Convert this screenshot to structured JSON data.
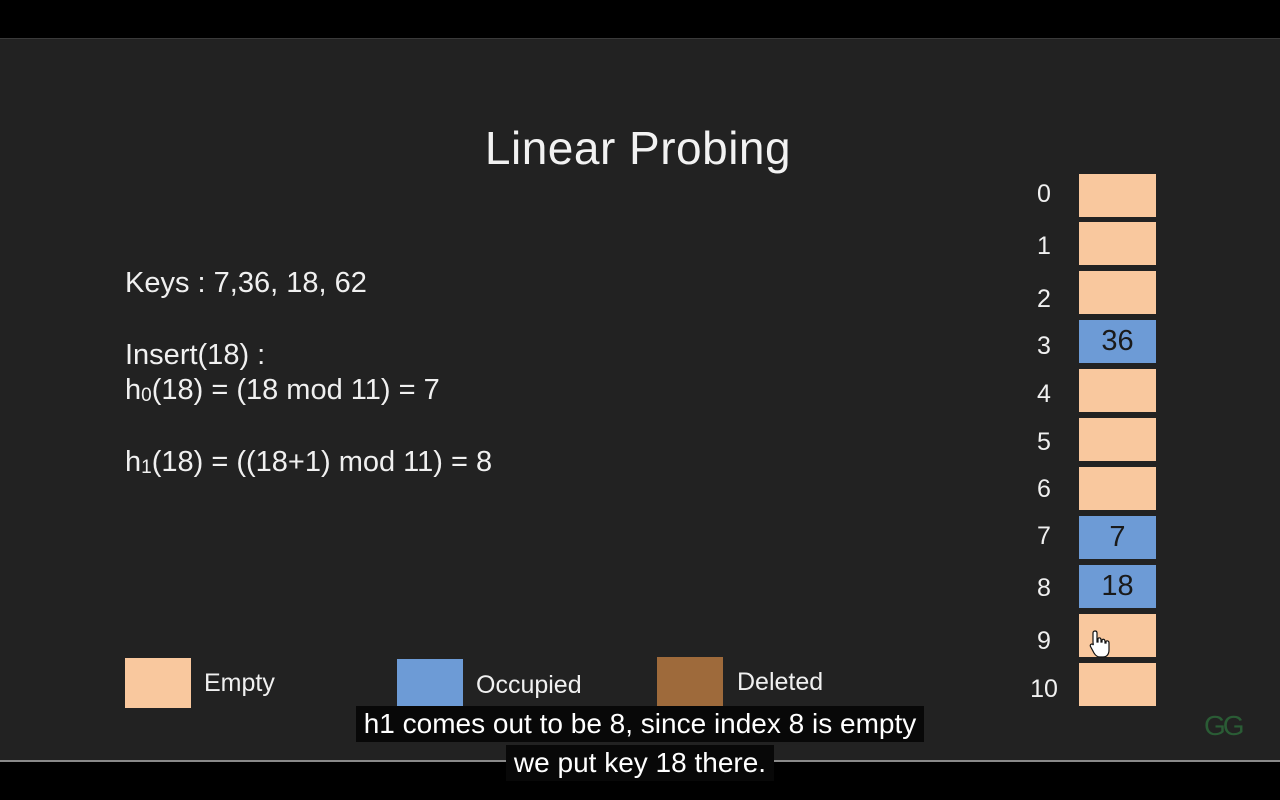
{
  "slide": {
    "title": "Linear Probing",
    "keys_line": "Keys : 7,36, 18, 62",
    "insert_line": "Insert(18) :",
    "h0": {
      "fn": "h",
      "sub": "0",
      "expr": "(18) = (18 mod 11) = 7"
    },
    "h1": {
      "fn": "h",
      "sub": "1",
      "expr": "(18) = ((18+1) mod 11) = 8"
    }
  },
  "legend": {
    "empty_label": "Empty",
    "occupied_label": "Occupied",
    "deleted_label": "Deleted",
    "colors": {
      "empty": "#f9c89e",
      "occupied": "#6d9bd6",
      "deleted": "#9e6a3b"
    }
  },
  "hash_table": {
    "slots": [
      {
        "index": "0",
        "value": "",
        "state": "empty"
      },
      {
        "index": "1",
        "value": "",
        "state": "empty"
      },
      {
        "index": "2",
        "value": "",
        "state": "empty"
      },
      {
        "index": "3",
        "value": "36",
        "state": "occupied"
      },
      {
        "index": "4",
        "value": "",
        "state": "empty"
      },
      {
        "index": "5",
        "value": "",
        "state": "empty"
      },
      {
        "index": "6",
        "value": "",
        "state": "empty"
      },
      {
        "index": "7",
        "value": "7",
        "state": "occupied"
      },
      {
        "index": "8",
        "value": "18",
        "state": "occupied"
      },
      {
        "index": "9",
        "value": "",
        "state": "empty"
      },
      {
        "index": "10",
        "value": "",
        "state": "empty"
      }
    ]
  },
  "captions": {
    "line1": "h1 comes out to be 8, since index 8 is empty",
    "line2": "we put key 18 there."
  },
  "logo_text": "GG",
  "cursor_icon": "hand-pointer-icon"
}
